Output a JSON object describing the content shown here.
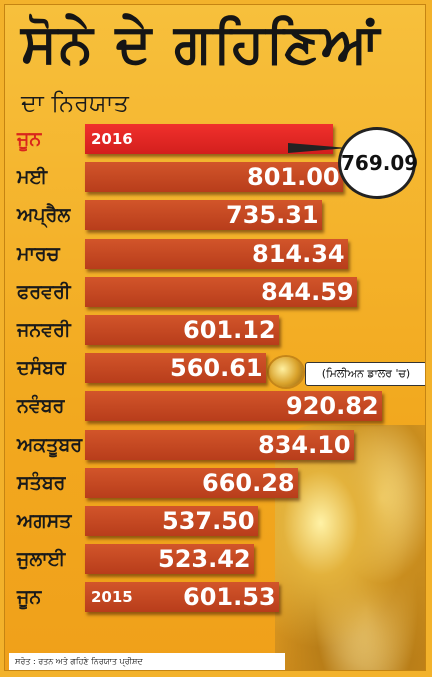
{
  "title": "ਸੋਨੇ ਦੇ ਗਹਿਣਿਆਂ",
  "subtitle": "ਦਾ ਨਿਰਯਾਤ",
  "unit_note": "(ਮਿਲੀਅਨ ਡਾਲਰ 'ਚ)",
  "source": "ਸਰੋਤ : ਰਤਨ ਅਤੇ ਗਹਿਣੇ ਨਿਰਯਾਤ ਪ੍ਰੀਸ਼ਦ",
  "callout_value": "769.09",
  "colors": {
    "bar": "#c0461f",
    "highlight_bar": "#e52a25",
    "highlight_label": "#d9261c"
  },
  "icons": [
    "ring-icon",
    "gold-jewellery-photo"
  ],
  "chart_data": {
    "type": "bar",
    "orientation": "horizontal",
    "categories": [
      "ਜੂਨ",
      "ਮਈ",
      "ਅਪ੍ਰੈਲ",
      "ਮਾਰਚ",
      "ਫਰਵਰੀ",
      "ਜਨਵਰੀ",
      "ਦਸੰਬਰ",
      "ਨਵੰਬਰ",
      "ਅਕਤੂਬਰ",
      "ਸਤੰਬਰ",
      "ਅਗਸਤ",
      "ਜੁਲਾਈ",
      "ਜੂਨ"
    ],
    "values": [
      769.09,
      801.0,
      735.31,
      814.34,
      844.59,
      601.12,
      560.61,
      920.82,
      834.1,
      660.28,
      537.5,
      523.42,
      601.53
    ],
    "value_labels": [
      "",
      "801.00",
      "735.31",
      "814.34",
      "844.59",
      "601.12",
      "560.61",
      "920.82",
      "834.10",
      "660.28",
      "537.50",
      "523.42",
      "601.53"
    ],
    "year_tags": [
      "2016",
      "",
      "",
      "",
      "",
      "",
      "",
      "",
      "",
      "",
      "",
      "",
      "2015"
    ],
    "highlight_index": 0
  }
}
